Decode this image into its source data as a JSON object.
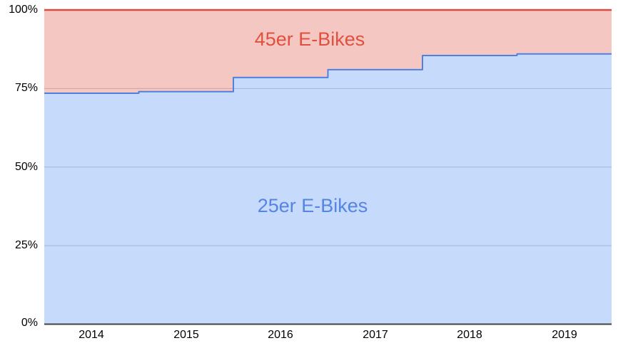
{
  "chart_data": {
    "type": "area",
    "variant": "stepped-stacked-100-percent",
    "title": "",
    "xlabel": "",
    "ylabel": "",
    "x": [
      "2014",
      "2015",
      "2016",
      "2017",
      "2018",
      "2019"
    ],
    "series": [
      {
        "name": "25er E-Bikes",
        "values": [
          73.5,
          74,
          78.5,
          81,
          85.5,
          86
        ],
        "line_color": "#4f80e2",
        "fill_color": "rgba(66,133,244,0.30)",
        "label_color": "#5585e4"
      },
      {
        "name": "45er E-Bikes",
        "values": [
          26.5,
          26,
          21.5,
          19,
          14.5,
          14
        ],
        "line_color": "#dc4a3d",
        "fill_color": "rgba(219,68,55,0.30)",
        "label_color": "#e0503e"
      }
    ],
    "ylim": [
      0,
      100
    ],
    "yticks": [
      {
        "label": "100%",
        "value": 100
      },
      {
        "label": "75%",
        "value": 75
      },
      {
        "label": "50%",
        "value": 50
      },
      {
        "label": "25%",
        "value": 25
      },
      {
        "label": "0%",
        "value": 0
      }
    ],
    "grid": true,
    "gridline_color": "#cccccc",
    "axis_line_color": "#424242",
    "tick_label_color": "#000000",
    "legend_position": "labels-inside-areas",
    "background_color": "#ffffff"
  }
}
